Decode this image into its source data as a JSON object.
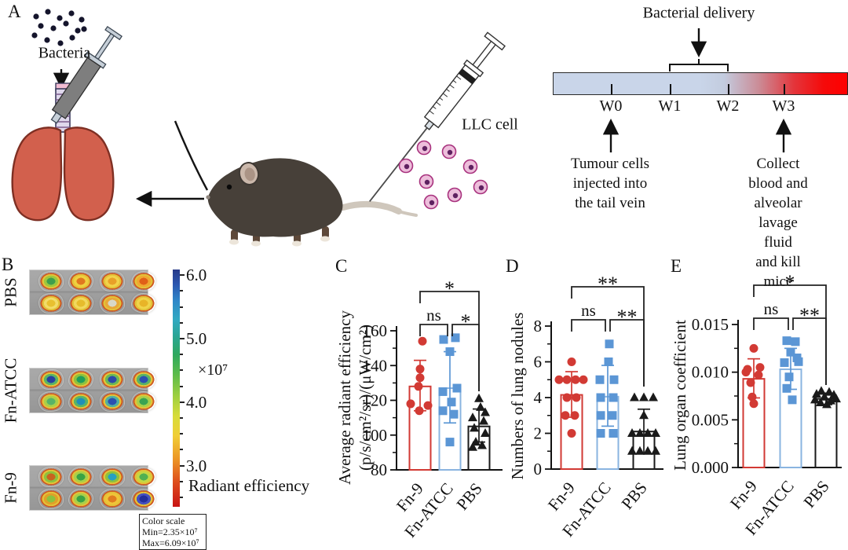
{
  "panel_labels": {
    "a": "A",
    "b": "B",
    "c": "C",
    "d": "D",
    "e": "E"
  },
  "panel_a": {
    "bacteria_label": "Bacteria",
    "llc_label": "LLC cell",
    "timeline": {
      "delivery_label": "Bacterial delivery",
      "weeks": [
        "W0",
        "W1",
        "W2",
        "W3"
      ],
      "left_note": "Tumour cells\ninjected into\nthe tail vein",
      "right_note": "Collect blood and\nalveolar lavage fluid\nand kill mice"
    }
  },
  "panel_b": {
    "groups": [
      {
        "label": "PBS",
        "blobs": [
          [
            "#3f9e4d",
            "#9cc83e"
          ],
          [
            "#e07820",
            "#f0d040"
          ],
          [
            "#e8a028",
            "#f2d24a"
          ],
          [
            "#e06018",
            "#f0a830"
          ],
          [
            "#e8c030",
            "#f2dc6a"
          ],
          [
            "#e6bc2c",
            "#f2d85e"
          ],
          [
            "#d8d8c8",
            "#e8a838"
          ],
          [
            "#e8b428",
            "#f0d44a"
          ]
        ]
      },
      {
        "label": "Fn-ATCC",
        "blobs": [
          [
            "#27409f",
            "#58b368"
          ],
          [
            "#1f9e5a",
            "#8cc23e"
          ],
          [
            "#2b49a8",
            "#6ab858"
          ],
          [
            "#2b50b0",
            "#58b368"
          ],
          [
            "#58b368",
            "#a8d04a"
          ],
          [
            "#1f8fb8",
            "#58b368"
          ],
          [
            "#2b50b0",
            "#52b0a0"
          ],
          [
            "#3aa352",
            "#a8d04a"
          ]
        ]
      },
      {
        "label": "Fn-9",
        "blobs": [
          [
            "#c8641f",
            "#8cc23e"
          ],
          [
            "#3aa344",
            "#a8d04a"
          ],
          [
            "#28a0c0",
            "#8cc23e"
          ],
          [
            "#52b052",
            "#c4d844"
          ],
          [
            "#8cc23e",
            "#e0a028"
          ],
          [
            "#3aa344",
            "#a8d04a"
          ],
          [
            "#e07c20",
            "#f0c438"
          ],
          [
            "#232e9c",
            "#4650c0"
          ]
        ]
      }
    ],
    "colorbar": {
      "tick_values": [
        6.0,
        5.0,
        4.0,
        3.0
      ],
      "tick_labels": [
        "6.0",
        "5.0",
        "4.0",
        "3.0"
      ],
      "min_value": 2.35,
      "max_value": 6.09,
      "multiplier": "×10⁷",
      "axis_label": "Radiant efficiency",
      "scale_box": {
        "title": "Color scale",
        "min": "Min=2.35×10⁷",
        "max": "Max=6.09×10⁷"
      }
    }
  },
  "chart_data": [
    {
      "id": "c",
      "panel": "C",
      "type": "bar",
      "ylabel": "Average radiant efficiency\n(p/s/cm²/sr)/(μW/cm²)",
      "categories": [
        "Fn-9",
        "Fn-ATCC",
        "PBS"
      ],
      "ylim": [
        80,
        160
      ],
      "yticks": {
        "values": [
          80,
          100,
          120,
          140,
          160
        ],
        "labels": [
          "80",
          "100",
          "120",
          "140",
          "160"
        ]
      },
      "bars": [
        128,
        127,
        105
      ],
      "errors": [
        [
          114,
          143
        ],
        [
          107,
          148
        ],
        [
          96,
          115
        ]
      ],
      "points": [
        [
          [
            3,
            154
          ],
          [
            0,
            138
          ],
          [
            0,
            133
          ],
          [
            -2,
            128
          ],
          [
            -12,
            118
          ],
          [
            10,
            117
          ],
          [
            -1,
            114
          ]
        ],
        [
          [
            -8,
            155
          ],
          [
            7,
            156
          ],
          [
            0,
            148
          ],
          [
            9,
            127
          ],
          [
            -9,
            125
          ],
          [
            2,
            119
          ],
          [
            -9,
            114
          ],
          [
            5,
            112
          ],
          [
            0,
            96
          ]
        ],
        [
          [
            0,
            121
          ],
          [
            2,
            116
          ],
          [
            8,
            113
          ],
          [
            -8,
            110
          ],
          [
            6,
            108
          ],
          [
            -6,
            104
          ],
          [
            8,
            101
          ],
          [
            -4,
            96
          ],
          [
            4,
            94
          ],
          [
            -8,
            93
          ]
        ]
      ],
      "sig": [
        {
          "a": 0,
          "b": 2,
          "label": "*",
          "tier": 2
        },
        {
          "a": 0,
          "b": 1,
          "label": "ns",
          "tier": 1
        },
        {
          "a": 1,
          "b": 2,
          "label": "*",
          "tier": 1
        }
      ],
      "colors": {
        "bar": [
          "#d23a34",
          "#8ab4e0",
          "#1a1a1a"
        ],
        "marker": [
          "#d23a34",
          "#5b96d5",
          "#1a1a1a"
        ]
      },
      "markers": [
        "circle",
        "square",
        "triangle"
      ]
    },
    {
      "id": "d",
      "panel": "D",
      "type": "bar",
      "ylabel": "Numbers of lung nodules",
      "categories": [
        "Fn-9",
        "Fn-ATCC",
        "PBS"
      ],
      "ylim": [
        0,
        8
      ],
      "yticks": {
        "values": [
          0,
          2,
          4,
          6,
          8
        ],
        "labels": [
          "0",
          "2",
          "4",
          "6",
          "8"
        ]
      },
      "bars": [
        4.15,
        4.05,
        2.1
      ],
      "errors": [
        [
          2.9,
          5.45
        ],
        [
          2.4,
          5.8
        ],
        [
          0.9,
          3.35
        ]
      ],
      "points": [
        [
          [
            0,
            6
          ],
          [
            -16,
            5
          ],
          [
            -6,
            5
          ],
          [
            5,
            5
          ],
          [
            15,
            5
          ],
          [
            -6,
            4
          ],
          [
            6,
            4
          ],
          [
            -8,
            3
          ],
          [
            4,
            3
          ],
          [
            0,
            2
          ]
        ],
        [
          [
            2,
            7
          ],
          [
            1,
            6
          ],
          [
            -10,
            5
          ],
          [
            8,
            5
          ],
          [
            -9,
            4
          ],
          [
            7,
            4
          ],
          [
            -9,
            3
          ],
          [
            6,
            3
          ],
          [
            -9,
            2
          ],
          [
            7,
            2
          ]
        ],
        [
          [
            -12,
            4
          ],
          [
            0,
            4
          ],
          [
            12,
            4
          ],
          [
            0,
            3
          ],
          [
            -15,
            2
          ],
          [
            -5,
            2
          ],
          [
            5,
            2
          ],
          [
            15,
            2
          ],
          [
            -15,
            1
          ],
          [
            -5,
            1
          ],
          [
            5,
            1
          ],
          [
            15,
            1
          ]
        ]
      ],
      "sig": [
        {
          "a": 0,
          "b": 2,
          "label": "**",
          "tier": 2
        },
        {
          "a": 0,
          "b": 1,
          "label": "ns",
          "tier": 1
        },
        {
          "a": 1,
          "b": 2,
          "label": "**",
          "tier": 1
        }
      ],
      "colors": {
        "bar": [
          "#d23a34",
          "#8ab4e0",
          "#1a1a1a"
        ],
        "marker": [
          "#d23a34",
          "#5b96d5",
          "#1a1a1a"
        ]
      },
      "markers": [
        "circle",
        "square",
        "triangle"
      ]
    },
    {
      "id": "e",
      "panel": "E",
      "type": "bar",
      "ylabel": "Lung organ coefficient",
      "categories": [
        "Fn-9",
        "Fn-ATCC",
        "PBS"
      ],
      "ylim": [
        0,
        0.015
      ],
      "yticks": {
        "values": [
          0,
          0.005,
          0.01,
          0.015
        ],
        "labels": [
          "0.000",
          "0.005",
          "0.010",
          "0.015"
        ]
      },
      "bars": [
        0.0093,
        0.0103,
        0.0072
      ],
      "errors": [
        [
          0.0073,
          0.0114
        ],
        [
          0.0082,
          0.0125
        ],
        [
          0.0066,
          0.0078
        ]
      ],
      "points": [
        [
          [
            0,
            0.0125
          ],
          [
            -8,
            0.0103
          ],
          [
            8,
            0.0105
          ],
          [
            -10,
            0.01
          ],
          [
            6,
            0.0097
          ],
          [
            -4,
            0.0089
          ],
          [
            -2,
            0.0074
          ],
          [
            0,
            0.0067
          ]
        ],
        [
          [
            -5,
            0.0133
          ],
          [
            6,
            0.0132
          ],
          [
            0,
            0.0121
          ],
          [
            8,
            0.0115
          ],
          [
            10,
            0.0111
          ],
          [
            -8,
            0.011
          ],
          [
            -2,
            0.0095
          ],
          [
            -5,
            0.0083
          ],
          [
            2,
            0.0071
          ]
        ],
        [
          [
            -6,
            0.008
          ],
          [
            4,
            0.0079
          ],
          [
            -12,
            0.0077
          ],
          [
            10,
            0.0076
          ],
          [
            -2,
            0.0074
          ],
          [
            13,
            0.0072
          ],
          [
            -14,
            0.0071
          ],
          [
            6,
            0.007
          ],
          [
            -7,
            0.0068
          ],
          [
            1,
            0.0066
          ]
        ]
      ],
      "sig": [
        {
          "a": 0,
          "b": 2,
          "label": "*",
          "tier": 2
        },
        {
          "a": 0,
          "b": 1,
          "label": "ns",
          "tier": 1
        },
        {
          "a": 1,
          "b": 2,
          "label": "**",
          "tier": 1
        }
      ],
      "colors": {
        "bar": [
          "#d23a34",
          "#8ab4e0",
          "#1a1a1a"
        ],
        "marker": [
          "#d23a34",
          "#5b96d5",
          "#1a1a1a"
        ]
      },
      "markers": [
        "circle",
        "square",
        "triangle"
      ]
    }
  ]
}
